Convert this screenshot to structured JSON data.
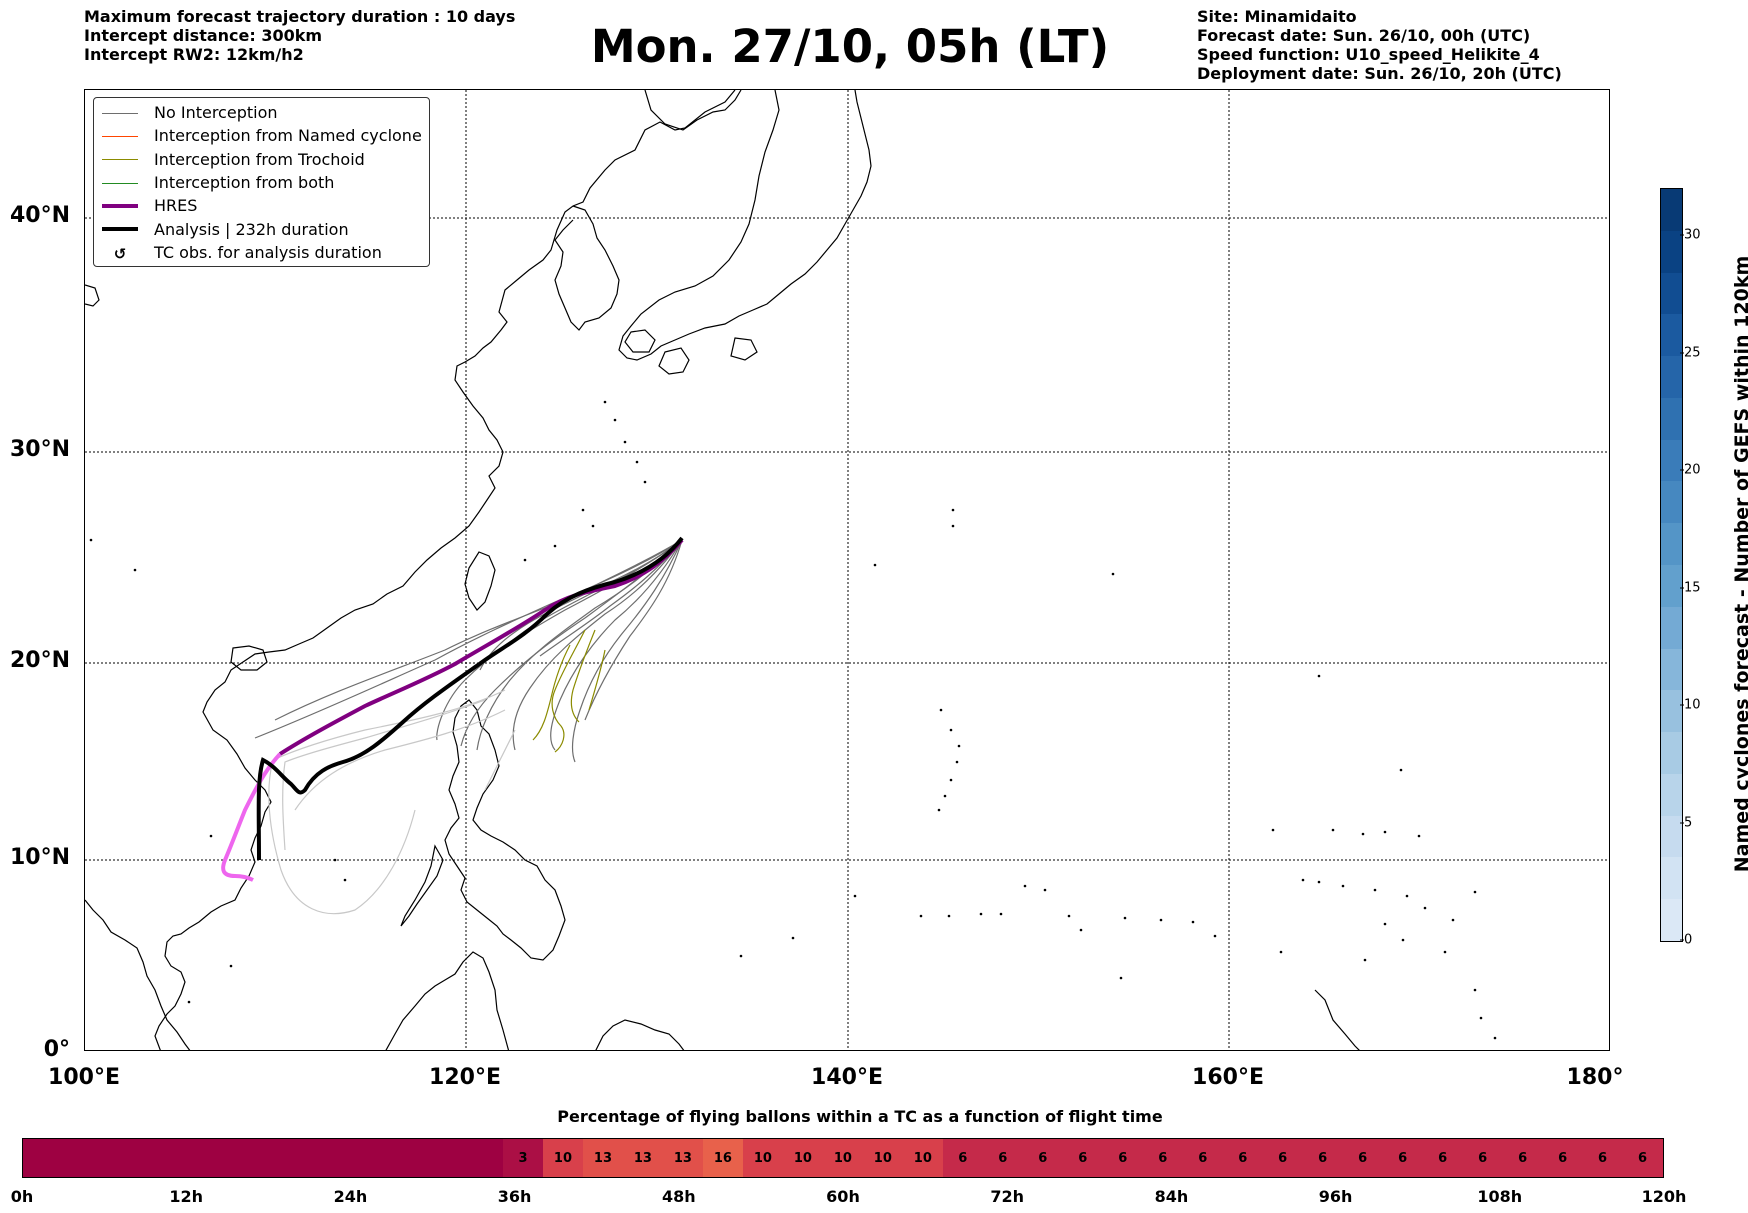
{
  "header": {
    "left_lines": [
      "Maximum forecast trajectory duration : 10 days",
      "Intercept distance: 300km",
      "Intercept RW2: 12km/h2"
    ],
    "title": "Mon. 27/10, 05h (LT)",
    "right_lines": [
      "Site: Minamidaito",
      "Forecast date: Sun. 26/10, 00h (UTC)",
      "Speed function: U10_speed_Helikite_4",
      "Deployment date: Sun. 26/10, 20h (UTC)"
    ]
  },
  "map": {
    "lat_labels": [
      "40°N",
      "30°N",
      "20°N",
      "10°N",
      "0°"
    ],
    "lon_labels": [
      "100°E",
      "120°E",
      "140°E",
      "160°E",
      "180°"
    ],
    "colors": {
      "coast": "#000000",
      "no_interception": "#6e6e6e",
      "named_cyclone": "#ff4500",
      "trochoid": "#8b8b00",
      "both": "#228b22",
      "hres": "#800080",
      "hres_late": "#ee66ee",
      "analysis": "#000000"
    }
  },
  "legend": {
    "items": [
      {
        "label": "No Interception",
        "color": "#6e6e6e",
        "width": 1
      },
      {
        "label": "Interception from Named cyclone",
        "color": "#ff4500",
        "width": 1
      },
      {
        "label": "Interception from Trochoid",
        "color": "#8b8b00",
        "width": 1
      },
      {
        "label": "Interception from both",
        "color": "#228b22",
        "width": 1
      },
      {
        "label": "HRES",
        "color": "#800080",
        "width": 4
      },
      {
        "label": "Analysis | 232h duration",
        "color": "#000000",
        "width": 4
      },
      {
        "label": "TC obs. for analysis duration",
        "icon": "cyclone-icon"
      }
    ]
  },
  "colorbar": {
    "label": "Named cyclones forecast - Number of GEFS within 120km",
    "ticks": [
      "0",
      "5",
      "10",
      "15",
      "20",
      "25",
      "30"
    ],
    "max": 32,
    "colors": [
      "#dbe8f6",
      "#d2e3f3",
      "#c6dbef",
      "#b8d4ea",
      "#a8cbe4",
      "#98c1df",
      "#86b6da",
      "#74aad4",
      "#62a0cd",
      "#5495c7",
      "#4688c0",
      "#3a7cb9",
      "#2f71b1",
      "#2565a9",
      "#1b5aa0",
      "#114d92",
      "#0a4283",
      "#083a75"
    ]
  },
  "timebar": {
    "title": "Percentage of flying ballons within a TC as a function of flight time",
    "tick_labels": [
      "0h",
      "12h",
      "24h",
      "36h",
      "48h",
      "60h",
      "72h",
      "84h",
      "96h",
      "108h",
      "120h"
    ],
    "cells": [
      {
        "span": 12,
        "value": "",
        "color": "#9e0142"
      },
      {
        "span": 1,
        "value": "3",
        "color": "#ab0f45"
      },
      {
        "span": 1,
        "value": "10",
        "color": "#d8404b"
      },
      {
        "span": 1,
        "value": "13",
        "color": "#e1504a"
      },
      {
        "span": 1,
        "value": "13",
        "color": "#e1504a"
      },
      {
        "span": 1,
        "value": "13",
        "color": "#e1504a"
      },
      {
        "span": 1,
        "value": "16",
        "color": "#e8614b"
      },
      {
        "span": 1,
        "value": "10",
        "color": "#d8404b"
      },
      {
        "span": 1,
        "value": "10",
        "color": "#d8404b"
      },
      {
        "span": 1,
        "value": "10",
        "color": "#d8404b"
      },
      {
        "span": 1,
        "value": "10",
        "color": "#d8404b"
      },
      {
        "span": 1,
        "value": "10",
        "color": "#d8404b"
      },
      {
        "span": 1,
        "value": "6",
        "color": "#c52a4a"
      },
      {
        "span": 1,
        "value": "6",
        "color": "#c52a4a"
      },
      {
        "span": 1,
        "value": "6",
        "color": "#c52a4a"
      },
      {
        "span": 1,
        "value": "6",
        "color": "#c52a4a"
      },
      {
        "span": 1,
        "value": "6",
        "color": "#c52a4a"
      },
      {
        "span": 1,
        "value": "6",
        "color": "#c52a4a"
      },
      {
        "span": 1,
        "value": "6",
        "color": "#c52a4a"
      },
      {
        "span": 1,
        "value": "6",
        "color": "#c52a4a"
      },
      {
        "span": 1,
        "value": "6",
        "color": "#c52a4a"
      },
      {
        "span": 1,
        "value": "6",
        "color": "#c52a4a"
      },
      {
        "span": 1,
        "value": "6",
        "color": "#c52a4a"
      },
      {
        "span": 1,
        "value": "6",
        "color": "#c52a4a"
      },
      {
        "span": 1,
        "value": "6",
        "color": "#c52a4a"
      },
      {
        "span": 1,
        "value": "6",
        "color": "#c52a4a"
      },
      {
        "span": 1,
        "value": "6",
        "color": "#c52a4a"
      },
      {
        "span": 1,
        "value": "6",
        "color": "#c52a4a"
      },
      {
        "span": 1,
        "value": "6",
        "color": "#c52a4a"
      },
      {
        "span": 1,
        "value": "6",
        "color": "#c52a4a"
      }
    ]
  }
}
